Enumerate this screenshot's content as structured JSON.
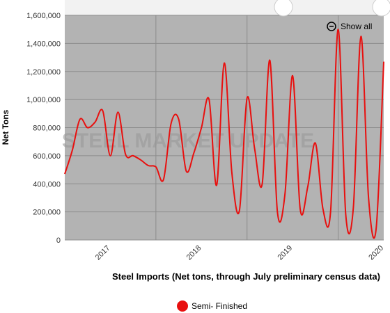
{
  "chart_data": {
    "type": "line",
    "title": "Steel Imports (Net tons, through July preliminary census data)",
    "y_label": "Net Tons",
    "watermark": "STEEL MARKET UPDATE",
    "reset_button": "Show all",
    "categories": [
      null,
      null,
      null,
      null,
      null,
      null,
      "2017",
      null,
      null,
      null,
      null,
      null,
      null,
      null,
      null,
      null,
      null,
      null,
      "2018",
      null,
      null,
      null,
      null,
      null,
      null,
      null,
      null,
      null,
      null,
      null,
      "2019",
      null,
      null,
      null,
      null,
      null,
      null,
      null,
      null,
      null,
      null,
      null,
      "2020"
    ],
    "series": [
      {
        "name": "Semi- Finished",
        "color": "#e8100f",
        "values": [
          470000,
          640000,
          860000,
          800000,
          840000,
          920000,
          600000,
          910000,
          610000,
          600000,
          570000,
          530000,
          520000,
          430000,
          830000,
          860000,
          490000,
          620000,
          800000,
          1000000,
          390000,
          1260000,
          480000,
          210000,
          1010000,
          650000,
          400000,
          1280000,
          200000,
          330000,
          1170000,
          220000,
          380000,
          690000,
          220000,
          200000,
          1500000,
          180000,
          230000,
          1450000,
          300000,
          80000,
          1270000
        ]
      }
    ],
    "ylim": [
      0,
      1600000
    ],
    "yticks": [
      0,
      {
        "value": 200000,
        "label": "200,000"
      },
      {
        "value": 400000,
        "label": "400,000"
      },
      {
        "value": 600000,
        "label": "600,000"
      },
      {
        "value": 800000,
        "label": "800,000"
      },
      {
        "value": 1000000,
        "label": "1,000,000"
      },
      {
        "value": 1200000,
        "label": "1,200,000"
      },
      {
        "value": 1400000,
        "label": "1,400,000"
      },
      {
        "value": 1600000,
        "label": "1,600,000"
      }
    ],
    "grid": true
  }
}
